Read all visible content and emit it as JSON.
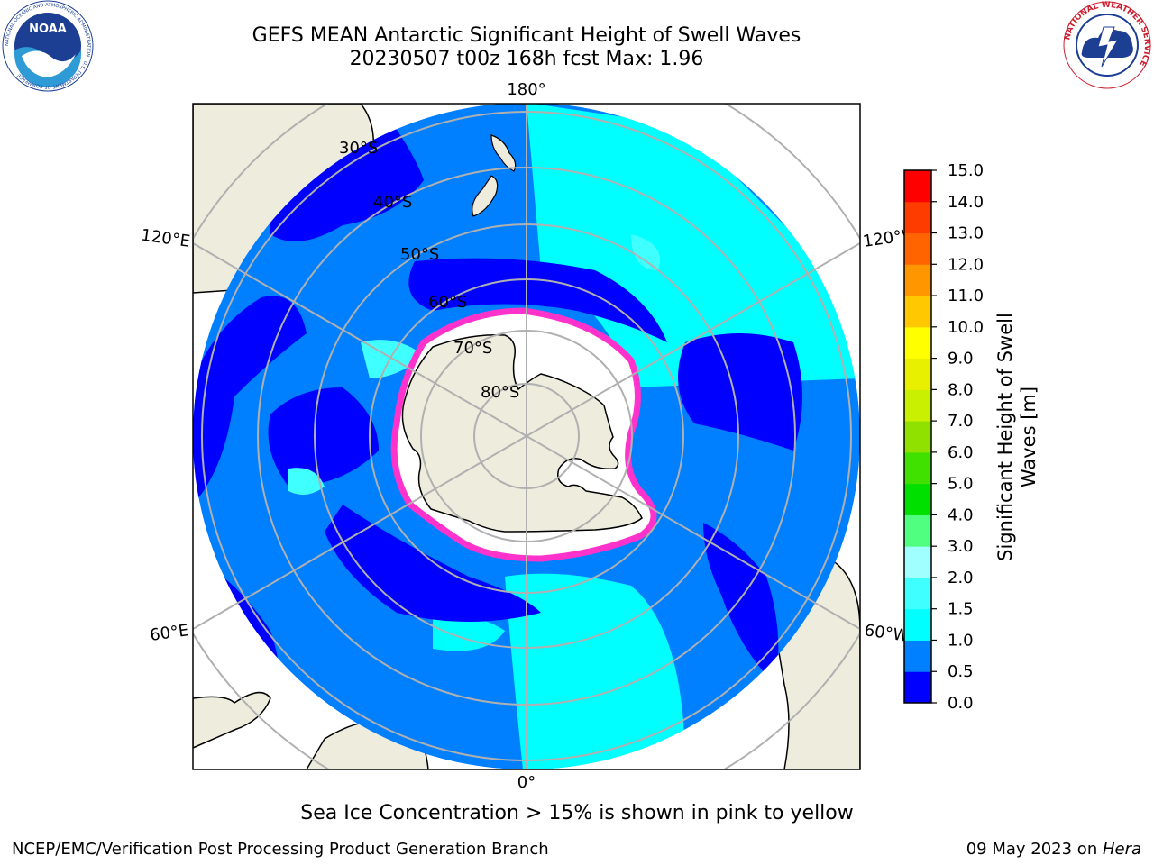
{
  "header": {
    "title_line1": "GEFS MEAN Antarctic Significant Height of Swell Waves",
    "title_line2": "20230507 t00z 168h fcst   Max: 1.96"
  },
  "logos": {
    "left": {
      "name": "noaa-logo",
      "text": "NOAA",
      "ring_text": "NATIONAL OCEANIC AND ATMOSPHERIC ADMINISTRATION · U.S. DEPARTMENT OF COMMERCE"
    },
    "right": {
      "name": "nws-logo",
      "ring_text": "NATIONAL WEATHER SERVICE"
    }
  },
  "map": {
    "projection": "south-polar-stereographic",
    "lon_labels": {
      "top": "180°",
      "bottom": "0°",
      "upper_left": "120°E",
      "upper_right": "120°W",
      "lower_left": "60°E",
      "lower_right": "60°W"
    },
    "lat_labels": [
      "30°S",
      "40°S",
      "50°S",
      "60°S",
      "70°S",
      "80°S"
    ],
    "colors": {
      "land": "#eeecdd",
      "ocean_low": "#0000ff",
      "ocean_mid": "#007fff",
      "ocean_high": "#00ffff",
      "ice_edge": "#ff33cc",
      "ice": "#ffffff",
      "grid": "#b0b0b0"
    }
  },
  "colorbar": {
    "title": "Significant Height of Swell Waves [m]",
    "ticks": [
      "0.0",
      "0.5",
      "1.0",
      "1.5",
      "2.0",
      "3.0",
      "4.0",
      "5.0",
      "6.0",
      "7.0",
      "8.0",
      "9.0",
      "10.0",
      "11.0",
      "12.0",
      "13.0",
      "14.0",
      "15.0"
    ],
    "colors": [
      "#0000ff",
      "#007fff",
      "#00ffff",
      "#40ffff",
      "#a0ffff",
      "#50ff80",
      "#00e000",
      "#40e000",
      "#90e000",
      "#c8f000",
      "#e8f000",
      "#ffff00",
      "#ffc800",
      "#ff9600",
      "#ff6400",
      "#ff3c00",
      "#ff0000"
    ]
  },
  "subtitle": "Sea Ice Concentration > 15% is shown in pink to yellow",
  "footer": {
    "left": "NCEP/EMC/Verification Post Processing Product Generation Branch",
    "right_date": "09 May 2023 on ",
    "right_host": "Hera"
  }
}
